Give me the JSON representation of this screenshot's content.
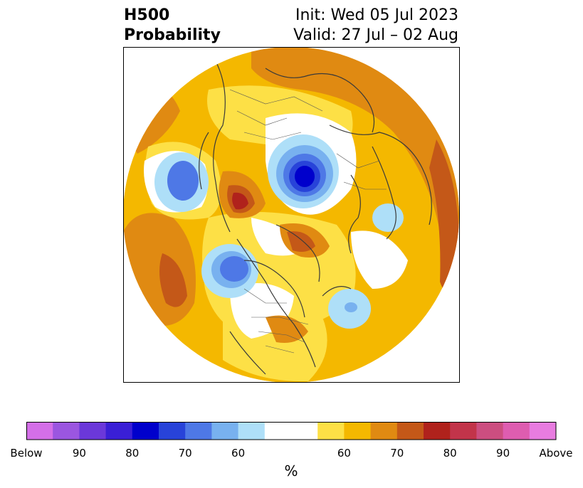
{
  "title": {
    "variable": "H500",
    "product": "Probability",
    "init": "Init: Wed 05 Jul 2023",
    "valid": "Valid: 27 Jul – 02 Aug"
  },
  "colorbar": {
    "unit": "%",
    "colors": [
      "#d46fe8",
      "#9b56e0",
      "#6b38da",
      "#3a1fd6",
      "#0000cc",
      "#2843d9",
      "#4e78e6",
      "#78b1ef",
      "#aedff8",
      "#ffffff",
      "#ffffff",
      "#fde046",
      "#f4b800",
      "#e08a12",
      "#c45818",
      "#b0221c",
      "#c2344a",
      "#cc4e80",
      "#de5db0",
      "#e87ce0"
    ],
    "ticks": [
      "Below",
      "90",
      "80",
      "70",
      "60",
      "60",
      "70",
      "80",
      "90",
      "Above"
    ],
    "tick_positions": [
      0,
      2,
      4,
      6,
      8,
      12,
      14,
      16,
      18,
      20
    ]
  },
  "map": {
    "projection": "north-polar-stereographic",
    "colors": {
      "ocean": "#ffffff",
      "coast": "#3a3a3a",
      "yellow": "#fde046",
      "gold": "#f4b800",
      "orange": "#e08a12",
      "dark_orange": "#c45818",
      "red": "#b0221c",
      "light_blue": "#aedff8",
      "mid_blue": "#78b1ef",
      "blue": "#4e78e6",
      "deep_blue": "#2843d9",
      "navy": "#0000cc"
    }
  }
}
